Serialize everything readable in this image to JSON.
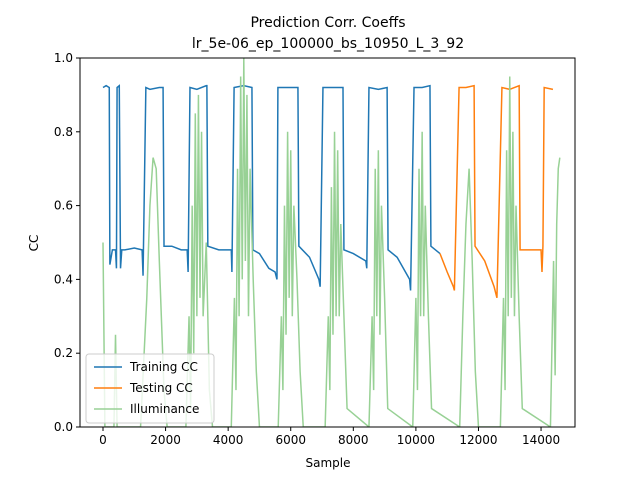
{
  "chart_data": {
    "type": "line",
    "title": "Prediction Corr. Coeffs",
    "subtitle": "lr_5e-06_ep_100000_bs_10950_L_3_92",
    "x_label": "Sample",
    "y_label": "CC",
    "xlim": [
      -735,
      15085
    ],
    "ylim": [
      0,
      1
    ],
    "xticks": [
      0,
      2000,
      4000,
      6000,
      8000,
      10000,
      12000,
      14000
    ],
    "yticks": [
      {
        "value": 0,
        "label": "0.0"
      },
      0.2,
      0.4,
      0.6,
      0.8,
      {
        "value": 1,
        "label": "1.0"
      }
    ],
    "legend": "lower left",
    "series": [
      {
        "name": "Training CC",
        "color": "#1f77b4",
        "x": [
          0,
          100,
          200,
          220,
          300,
          400,
          430,
          450,
          520,
          560,
          600,
          700,
          1000,
          1250,
          1280,
          1370,
          1500,
          1800,
          1920,
          1950,
          2200,
          2500,
          2690,
          2720,
          2780,
          3000,
          3300,
          3320,
          3350,
          3700,
          4100,
          4120,
          4190,
          4500,
          4760,
          4790,
          5000,
          5300,
          5500,
          5560,
          5590,
          6000,
          6230,
          6260,
          6600,
          6900,
          6940,
          7030,
          7400,
          7670,
          7700,
          8000,
          8400,
          8430,
          8500,
          8800,
          9080,
          9110,
          9400,
          9800,
          9830,
          9940,
          10200,
          10450,
          10480,
          10770
        ],
        "values": [
          0.92,
          0.925,
          0.92,
          0.44,
          0.48,
          0.48,
          0.43,
          0.92,
          0.925,
          0.43,
          0.48,
          0.48,
          0.485,
          0.48,
          0.41,
          0.92,
          0.915,
          0.92,
          0.92,
          0.49,
          0.49,
          0.48,
          0.48,
          0.42,
          0.92,
          0.915,
          0.925,
          0.925,
          0.49,
          0.48,
          0.48,
          0.42,
          0.92,
          0.925,
          0.92,
          0.48,
          0.47,
          0.43,
          0.42,
          0.4,
          0.92,
          0.92,
          0.92,
          0.49,
          0.46,
          0.4,
          0.38,
          0.92,
          0.92,
          0.92,
          0.48,
          0.47,
          0.45,
          0.43,
          0.92,
          0.915,
          0.92,
          0.48,
          0.46,
          0.4,
          0.37,
          0.92,
          0.92,
          0.925,
          0.49,
          0.47
        ]
      },
      {
        "name": "Testing CC",
        "color": "#ff7f0e",
        "x": [
          10770,
          11000,
          11200,
          11230,
          11380,
          11600,
          11860,
          11890,
          12200,
          12500,
          12590,
          12750,
          13000,
          13300,
          13330,
          13700,
          14000,
          14030,
          14060,
          14100,
          14380
        ],
        "values": [
          0.47,
          0.42,
          0.38,
          0.37,
          0.92,
          0.92,
          0.925,
          0.49,
          0.45,
          0.38,
          0.35,
          0.92,
          0.915,
          0.925,
          0.48,
          0.48,
          0.48,
          0.42,
          0.49,
          0.92,
          0.915
        ]
      },
      {
        "name": "Illuminance",
        "color": "#98d195",
        "x": [
          0,
          60,
          350,
          400,
          450,
          1200,
          1400,
          1500,
          1600,
          1700,
          1800,
          1950,
          2050,
          2650,
          2750,
          2800,
          2850,
          2900,
          2950,
          3000,
          3050,
          3100,
          3150,
          3200,
          3300,
          3400,
          3500,
          4100,
          4200,
          4250,
          4300,
          4350,
          4400,
          4450,
          4500,
          4550,
          4600,
          4650,
          4700,
          4800,
          4900,
          5000,
          5600,
          5700,
          5750,
          5800,
          5850,
          5900,
          5950,
          6000,
          6050,
          6100,
          6200,
          6300,
          6400,
          7100,
          7200,
          7250,
          7300,
          7350,
          7400,
          7450,
          7500,
          7550,
          7600,
          7700,
          7800,
          8500,
          8600,
          8650,
          8700,
          8750,
          8800,
          8850,
          8900,
          9000,
          9100,
          9900,
          10000,
          10050,
          10100,
          10150,
          10200,
          10250,
          10300,
          10400,
          10500,
          11400,
          11500,
          11600,
          11700,
          11800,
          11900,
          12000,
          12700,
          12800,
          12850,
          12900,
          12950,
          13000,
          13050,
          13100,
          13150,
          13200,
          13300,
          13400,
          14300,
          14400,
          14450,
          14500,
          14550,
          14600
        ],
        "values": [
          0.5,
          0,
          0,
          0.25,
          0,
          0,
          0.35,
          0.6,
          0.73,
          0.7,
          0.45,
          0.1,
          0,
          0,
          0.3,
          0.05,
          0.6,
          0.2,
          0.85,
          0.3,
          0.9,
          0.35,
          0.8,
          0.3,
          0.5,
          0.1,
          0,
          0,
          0.35,
          0.1,
          0.7,
          0.3,
          0.95,
          0.4,
          1.0,
          0.45,
          0.9,
          0.3,
          0.7,
          0.4,
          0.15,
          0,
          0,
          0.3,
          0.1,
          0.6,
          0.25,
          0.8,
          0.35,
          0.75,
          0.3,
          0.6,
          0.4,
          0.15,
          0,
          0,
          0.3,
          0.1,
          0.65,
          0.25,
          0.8,
          0.3,
          0.75,
          0.3,
          0.55,
          0.3,
          0.05,
          0,
          0.3,
          0.1,
          0.7,
          0.3,
          0.75,
          0.25,
          0.6,
          0.35,
          0.05,
          0,
          0.35,
          0.1,
          0.7,
          0.3,
          0.8,
          0.3,
          0.6,
          0.3,
          0.05,
          0,
          0.3,
          0.55,
          0.7,
          0.45,
          0.15,
          0,
          0,
          0.35,
          0.1,
          0.75,
          0.3,
          0.95,
          0.35,
          0.8,
          0.3,
          0.6,
          0.3,
          0.05,
          0,
          0.45,
          0.14,
          0.55,
          0.7,
          0.73
        ]
      }
    ]
  }
}
